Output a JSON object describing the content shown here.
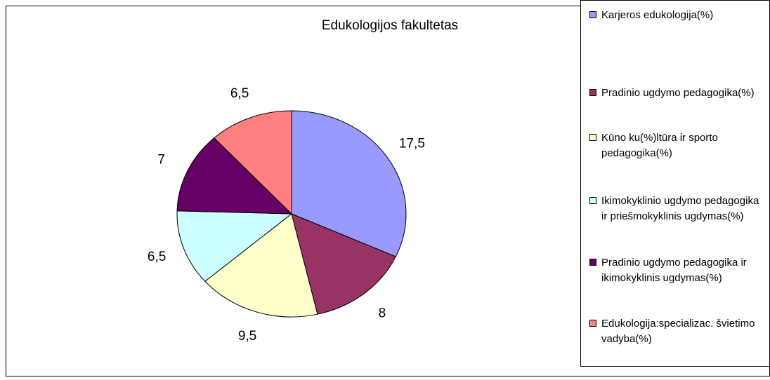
{
  "chart_data": {
    "type": "pie",
    "title": "Edukologijos fakultetas",
    "categories": [
      "Karjeros edukologija(%)",
      "Pradinio ugdymo pedagogika(%)",
      "Kūno ku(%)ltūra ir sporto pedagogika(%)",
      "Ikimokyklinio ugdymo pedagogika ir priešmokyklinis ugdymas(%)",
      "Pradinio ugdymo pedagogika ir ikimokyklinis ugdymas(%)",
      "Edukologija:specializac. švietimo vadyba(%)"
    ],
    "values": [
      17.5,
      8,
      9.5,
      6.5,
      7,
      6.5
    ],
    "value_labels": [
      "17,5",
      "8",
      "9,5",
      "6,5",
      "7",
      "6,5"
    ],
    "colors": [
      "#9999ff",
      "#993366",
      "#ffffcc",
      "#ccffff",
      "#660066",
      "#ff8080"
    ],
    "legend": "right"
  }
}
